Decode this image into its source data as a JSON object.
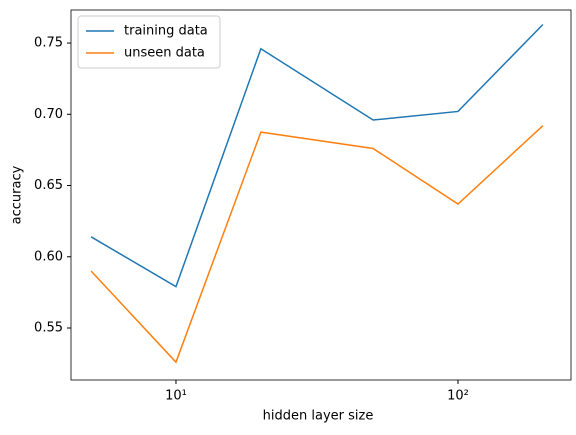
{
  "chart_data": {
    "type": "line",
    "x_label": "hidden layer size",
    "y_label": "accuracy",
    "x": [
      5,
      10,
      20,
      50,
      100,
      200
    ],
    "series": [
      {
        "name": "training data",
        "color": "#1f77b4",
        "values": [
          0.614,
          0.579,
          0.746,
          0.696,
          0.702,
          0.763
        ]
      },
      {
        "name": "unseen data",
        "color": "#ff7f0e",
        "values": [
          0.59,
          0.526,
          0.6875,
          0.676,
          0.637,
          0.692
        ]
      }
    ],
    "xscale": "log",
    "xlim": [
      4.244,
      251.6
    ],
    "ylim": [
      0.5135,
      0.7732
    ],
    "xticks": [
      {
        "value": 10,
        "label": "10¹"
      },
      {
        "value": 100,
        "label": "10²"
      }
    ],
    "yticks": [
      0.55,
      {
        "value": 0.6,
        "label": "0.60"
      },
      0.65,
      {
        "value": 0.7,
        "label": "0.70"
      },
      0.75
    ],
    "legend": "upper left"
  }
}
